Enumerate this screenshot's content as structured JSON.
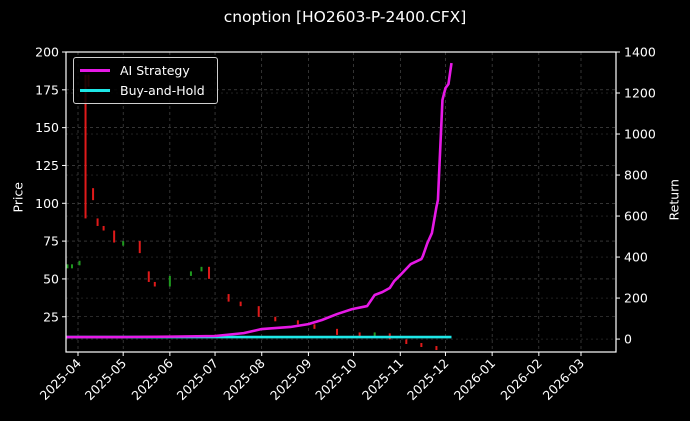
{
  "title": "cnoption [HO2603-P-2400.CFX]",
  "colors": {
    "background": "#000000",
    "ai_strategy": "#e619e6",
    "buy_and_hold": "#1ee6e6",
    "up_candle": "#1f9a1f",
    "down_candle": "#e01a1a",
    "grid": "#555555",
    "axis": "#ffffff"
  },
  "legend": {
    "items": [
      {
        "label": "AI Strategy",
        "color": "#e619e6"
      },
      {
        "label": "Buy-and-Hold",
        "color": "#1ee6e6"
      }
    ]
  },
  "axes": {
    "left_label": "Price",
    "right_label": "Return",
    "left_ticks": [
      "25",
      "50",
      "75",
      "100",
      "125",
      "150",
      "175",
      "200"
    ],
    "right_ticks": [
      "0",
      "200",
      "400",
      "600",
      "800",
      "1000",
      "1200",
      "1400"
    ],
    "x_ticks": [
      "2025-04",
      "2025-05",
      "2025-06",
      "2025-07",
      "2025-08",
      "2025-09",
      "2025-10",
      "2025-11",
      "2025-12",
      "2026-01",
      "2026-02",
      "2026-03"
    ]
  },
  "chart_data": {
    "type": "line",
    "title": "cnoption [HO2603-P-2400.CFX]",
    "xlabel": "",
    "ylabel": "Price",
    "ylabel_right": "Return",
    "ylim": [
      1.7,
      200
    ],
    "ylim_right": [
      -63,
      1400
    ],
    "grid": true,
    "legend_position": "upper left",
    "x_ticks": [
      "2025-04",
      "2025-05",
      "2025-06",
      "2025-07",
      "2025-08",
      "2025-09",
      "2025-10",
      "2025-11",
      "2025-12",
      "2026-01",
      "2026-02",
      "2026-03"
    ],
    "series": [
      {
        "name": "AI Strategy",
        "axis": "right",
        "x": [
          "2025-03-24",
          "2025-05-01",
          "2025-06-01",
          "2025-07-01",
          "2025-07-20",
          "2025-08-01",
          "2025-08-20",
          "2025-09-01",
          "2025-09-10",
          "2025-09-20",
          "2025-09-30",
          "2025-10-10",
          "2025-10-15",
          "2025-10-20",
          "2025-10-25",
          "2025-10-28",
          "2025-11-01",
          "2025-11-08",
          "2025-11-15",
          "2025-11-16",
          "2025-11-19",
          "2025-11-22",
          "2025-11-25",
          "2025-11-26",
          "2025-11-27",
          "2025-11-29",
          "2025-12-01",
          "2025-12-03",
          "2025-12-05"
        ],
        "values": [
          10,
          10,
          12,
          15,
          29,
          49,
          59,
          73,
          93,
          122,
          146,
          161,
          215,
          229,
          249,
          283,
          312,
          366,
          390,
          405,
          468,
          517,
          644,
          678,
          844,
          1166,
          1224,
          1244,
          1346
        ]
      },
      {
        "name": "Buy-and-Hold",
        "axis": "right",
        "x": [
          "2025-03-24",
          "2025-12-05"
        ],
        "values": [
          10,
          10
        ]
      },
      {
        "name": "Price (candlestick)",
        "axis": "left",
        "type": "candlestick",
        "x": [
          "2025-03-25",
          "2025-03-28",
          "2025-04-02",
          "2025-04-06",
          "2025-04-08",
          "2025-04-11",
          "2025-04-14",
          "2025-04-18",
          "2025-04-25",
          "2025-05-01",
          "2025-05-12",
          "2025-05-18",
          "2025-05-22",
          "2025-06-01",
          "2025-06-15",
          "2025-06-22",
          "2025-06-27",
          "2025-07-10",
          "2025-07-18",
          "2025-07-30",
          "2025-08-10",
          "2025-08-25",
          "2025-09-05",
          "2025-09-20",
          "2025-10-05",
          "2025-10-15",
          "2025-10-25",
          "2025-11-05",
          "2025-11-15",
          "2025-11-25"
        ],
        "values": [
          57,
          59,
          62,
          185,
          110,
          90,
          85,
          82,
          72,
          75,
          55,
          48,
          45,
          52,
          55,
          58,
          40,
          35,
          32,
          25,
          22,
          20,
          17,
          13,
          12,
          14,
          10,
          7,
          5,
          3
        ]
      }
    ]
  }
}
